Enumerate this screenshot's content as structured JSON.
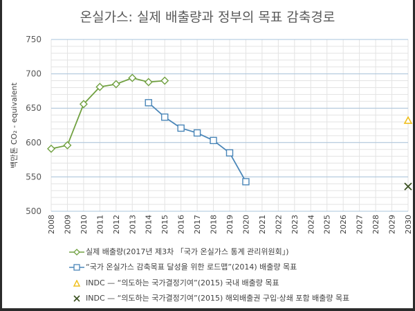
{
  "chart_data": {
    "type": "line",
    "title": "온실가스: 실제 배출량과 정부의 목표 감축경로",
    "ylabel": "백만톤 CO₂ - equivalent",
    "xlabel": "",
    "categories": [
      "2008",
      "2009",
      "2010",
      "2011",
      "2012",
      "2013",
      "2014",
      "2015",
      "2016",
      "2017",
      "2018",
      "2019",
      "2020",
      "2021",
      "2022",
      "2023",
      "2024",
      "2025",
      "2026",
      "2027",
      "2028",
      "2029",
      "2030"
    ],
    "ylim": [
      500,
      750
    ],
    "yticks": [
      "500",
      "550",
      "600",
      "650",
      "700",
      "750"
    ],
    "grid": true,
    "legend_position": "bottom",
    "series": [
      {
        "name": "실제 배출량(2017년 제3차 「국가 온실가스 통계 관리위원회」)",
        "marker": "diamond",
        "color": "#70a040",
        "x": [
          "2008",
          "2009",
          "2010",
          "2011",
          "2012",
          "2013",
          "2014",
          "2015"
        ],
        "values": [
          591,
          596,
          656,
          681,
          685,
          694,
          688,
          690
        ]
      },
      {
        "name": "“국가 온실가스 감축목표 달성을 위한 로드맵”(2014) 배출량 목표",
        "marker": "square",
        "color": "#4a86b8",
        "x": [
          "2014",
          "2015",
          "2016",
          "2017",
          "2018",
          "2019",
          "2020"
        ],
        "values": [
          658,
          637,
          621,
          614,
          603,
          585,
          543
        ]
      },
      {
        "name": "INDC — “의도하는 국가결정기여”(2015) 국내 배출량 목표",
        "marker": "triangle",
        "color": "#f0c020",
        "x": [
          "2030"
        ],
        "values": [
          632
        ]
      },
      {
        "name": "INDC — “의도하는 국가결정기여”(2015) 해외배출권 구입·상쇄 포함 배출량 목표",
        "marker": "x",
        "color": "#3a5020",
        "x": [
          "2030"
        ],
        "values": [
          536
        ]
      }
    ]
  }
}
